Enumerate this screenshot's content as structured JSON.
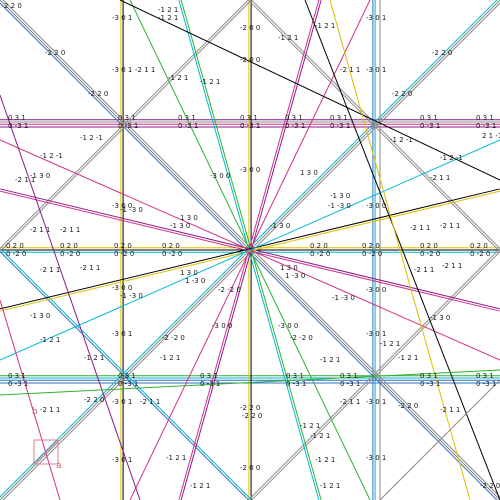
{
  "plot": {
    "line_colors": {
      "black": "#000000",
      "cyan": "#00b8d8",
      "blue": "#3070c0",
      "green": "#30b030",
      "purple": "#8a1a8a",
      "magenta": "#d0308a",
      "yellow": "#e0c000",
      "gray": "#8a8a8a"
    },
    "axis_indicator": {
      "label_b": "b",
      "label_a": "a",
      "color": "#d08090"
    }
  },
  "labels": {
    "top_left": "2 2 0",
    "l_u1": "-1 2 1",
    "l_u2": "-1 2 1",
    "l_b1": "-2 1 1",
    "l_z": "-2 0 0",
    "l_z2": "-2 0 0",
    "l_300": "-3 0 0",
    "l_301": "-3 0 1",
    "l_031": "0 3 1",
    "l_0m31": "0 -3 1",
    "l_220": "-2 2 0",
    "l_m2m20": "-2 -2 0",
    "l_130": "1 3 0",
    "l_m130": "-1 3 0",
    "l_1m30": "1 -3 0",
    "l_020": "0 2 0",
    "l_0m20": "0 -2 0",
    "l_m121": "-1 2 1",
    "l_1m21": "1 -2 1",
    "l_m211": "-2 1 1",
    "l_2m11": "2 -1 1",
    "l_m3m10": "-3 -1 0",
    "l_310": "3 1 0",
    "l_m12m1": "-1 2 -1",
    "l_21m1": "2 1 -1",
    "l_m1m20": "-1 -2 0",
    "l_m1m2m1": "-1 -2 -1",
    "l_m2m1m1": "-2 -1 -1",
    "l_m21m1": "-2 1 -1",
    "l_m3m1m1": "-3 -1 -1",
    "l_m300": "-3 0 0",
    "l_201": "2 0 1",
    "l_m120": "-1 2 0",
    "l_m1m30": "-1 -3 0",
    "l_210": "2 1 0",
    "l_m200": "-2 0 0",
    "l_m2m11": "-2 -1 1"
  }
}
